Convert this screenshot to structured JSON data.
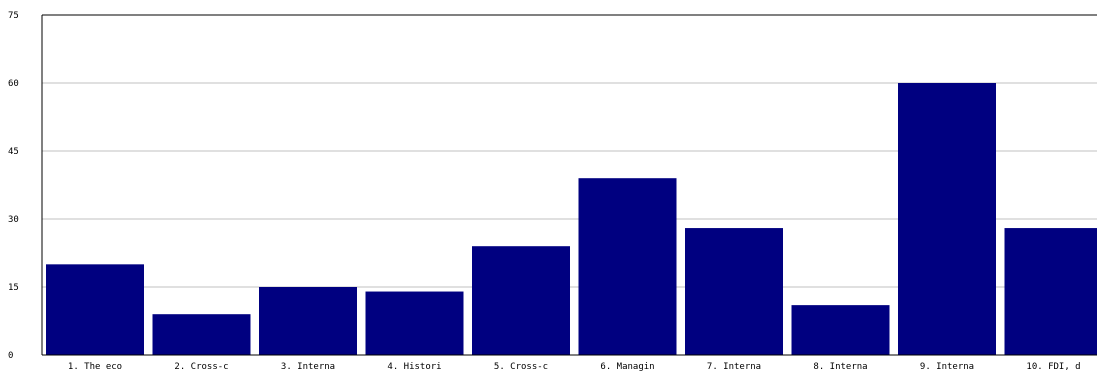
{
  "chart_data": {
    "type": "bar",
    "title": "",
    "xlabel": "",
    "ylabel": "",
    "categories": [
      "1. The eco",
      "2. Cross-c",
      "3. Interna",
      "4. Histori",
      "5. Cross-c",
      "6. Managin",
      "7. Interna",
      "8. Interna",
      "9. Interna",
      "10. FDI, d"
    ],
    "values": [
      20,
      9,
      15,
      14,
      24,
      39,
      28,
      11,
      60,
      28
    ],
    "ylim": [
      0,
      75
    ],
    "yticks": [
      "0",
      "15",
      "30",
      "45",
      "60",
      "75"
    ],
    "grid": true,
    "legend": "none",
    "colors": {
      "bar": "#000080",
      "grid": "#c0c0c0",
      "axis": "#000000",
      "background": "#ffffff"
    }
  }
}
